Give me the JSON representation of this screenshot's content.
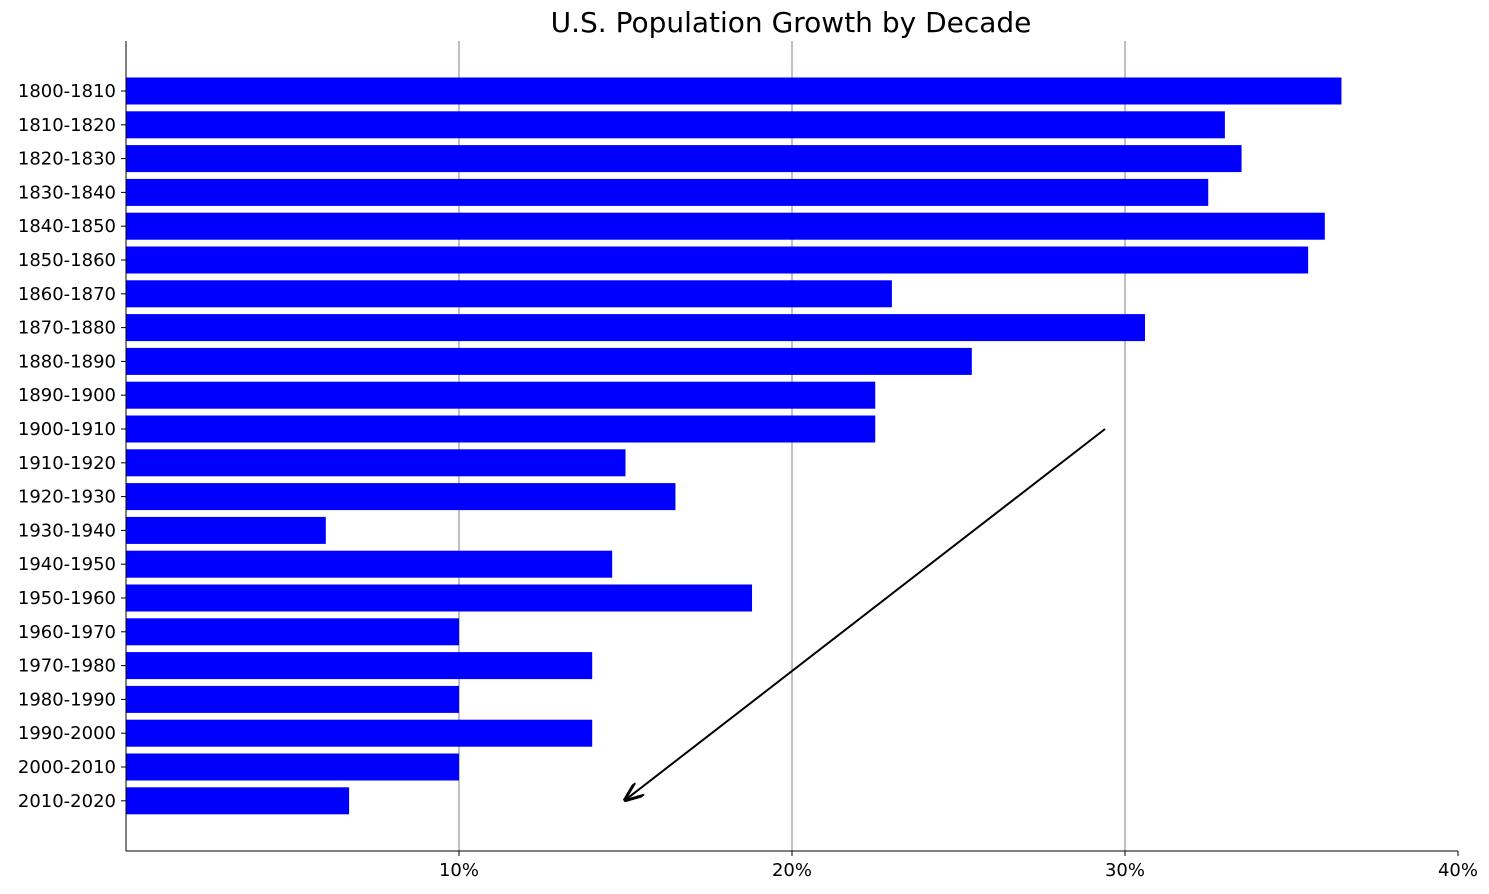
{
  "chart_data": {
    "type": "bar",
    "orientation": "horizontal",
    "title": "U.S. Population Growth by Decade",
    "xlabel": "",
    "ylabel": "",
    "xlim": [
      0,
      40
    ],
    "x_ticks": [
      10,
      20,
      30,
      40
    ],
    "x_tick_labels": [
      "10%",
      "20%",
      "30%",
      "40%"
    ],
    "grid": "vertical",
    "categories": [
      "1800-1810",
      "1810-1820",
      "1820-1830",
      "1830-1840",
      "1840-1850",
      "1850-1860",
      "1860-1870",
      "1870-1880",
      "1880-1890",
      "1890-1900",
      "1900-1910",
      "1910-1920",
      "1920-1930",
      "1930-1940",
      "1940-1950",
      "1950-1960",
      "1960-1970",
      "1970-1980",
      "1980-1990",
      "1990-2000",
      "2000-2010",
      "2010-2020"
    ],
    "values": [
      36.5,
      33.0,
      33.5,
      32.5,
      36.0,
      35.5,
      23.0,
      30.6,
      25.4,
      22.5,
      22.5,
      15.0,
      16.5,
      6.0,
      14.6,
      18.8,
      10.0,
      14.0,
      10.0,
      14.0,
      10.0,
      6.7
    ],
    "series_color": "#0000ff",
    "annotation": {
      "type": "arrow",
      "from": {
        "x": 29.4,
        "category": "1900-1910"
      },
      "to": {
        "x": 15.0,
        "category": "2010-2020"
      }
    }
  }
}
